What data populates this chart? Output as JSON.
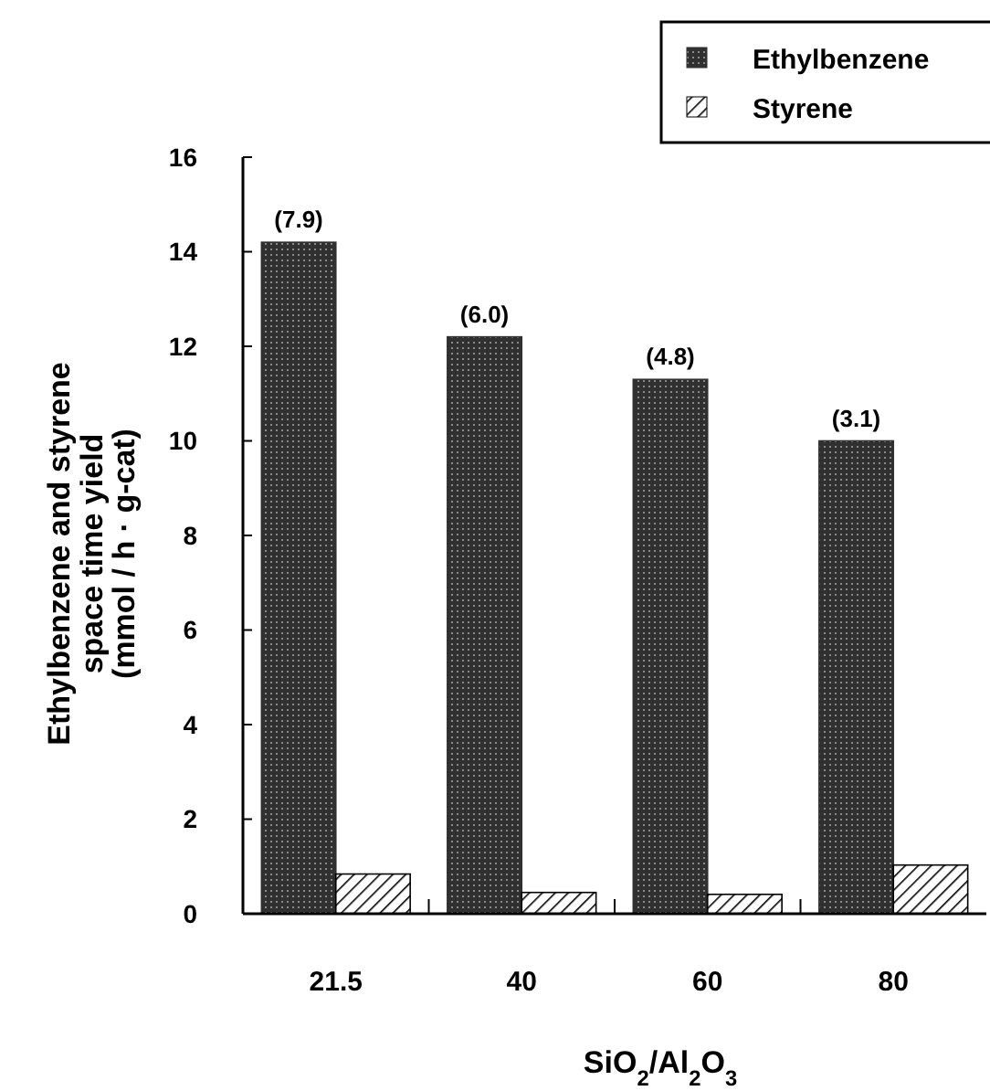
{
  "chart_data": {
    "type": "bar",
    "ylabel": "Ethylbenzene and styrene\nspace time yield\n(mmol / h · g-cat)",
    "xlabel": "SiO$_{2}$/Al$_{2}$O$_{3}$",
    "categories": [
      "21.5",
      "40",
      "60",
      "80"
    ],
    "series": [
      {
        "name": "Ethylbenzene",
        "color": "#303030",
        "values": [
          14.2,
          12.2,
          11.3,
          10.0
        ]
      },
      {
        "name": "Styrene",
        "color": "#000000",
        "values": [
          0.84,
          0.45,
          0.41,
          1.03
        ]
      }
    ],
    "ylim": [
      0,
      16
    ],
    "yticks": [
      0,
      2,
      4,
      6,
      8,
      10,
      12,
      14,
      16
    ],
    "legend": "top right",
    "annotations": [
      {
        "text": "(7.9)",
        "x": "21.5",
        "y": 14.2
      },
      {
        "text": "(6.0)",
        "x": "40",
        "y": 12.2
      },
      {
        "text": "(4.8)",
        "x": "60",
        "y": 11.3
      },
      {
        "text": "(3.1)",
        "x": "80",
        "y": 10.0
      }
    ]
  }
}
